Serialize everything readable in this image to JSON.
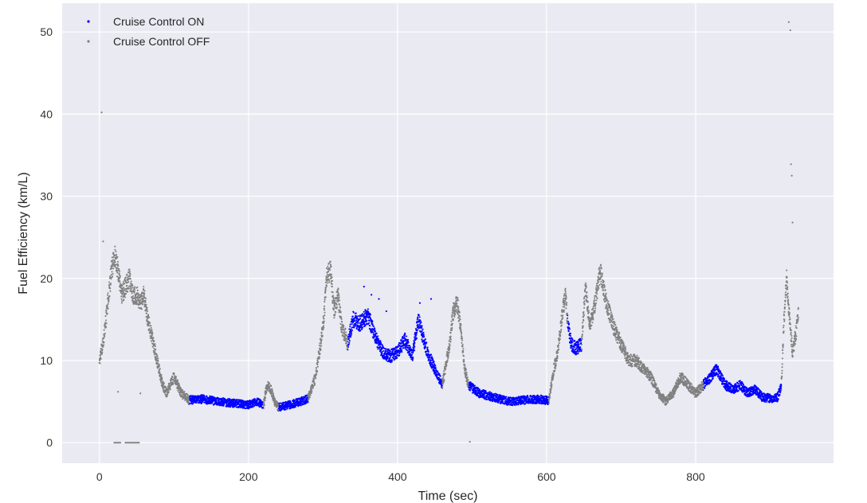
{
  "chart_data": {
    "type": "scatter",
    "title": "",
    "xlabel": "Time (sec)",
    "ylabel": "Fuel Efficiency (km/L)",
    "xlim": [
      -50,
      985
    ],
    "ylim": [
      -2.5,
      53.5
    ],
    "xticks": [
      0,
      200,
      400,
      600,
      800
    ],
    "yticks": [
      0,
      10,
      20,
      30,
      40,
      50
    ],
    "grid": true,
    "legend": "top-left",
    "colors": {
      "background": "#eaeaf2",
      "grid": "#ffffff"
    },
    "series": [
      {
        "name": "Cruise Control ON",
        "color": "#0000ff",
        "segments": [
          {
            "x": [
              120,
              140,
              160,
              180,
              200,
              212,
              220
            ],
            "y": [
              5.2,
              5.3,
              5.0,
              4.8,
              4.6,
              5.0,
              4.5
            ]
          },
          {
            "x": [
              240,
              255,
              270,
              280
            ],
            "y": [
              4.3,
              4.6,
              5.0,
              5.4
            ]
          },
          {
            "x": [
              333,
              340,
              350,
              360,
              370,
              380,
              390,
              400,
              410,
              420,
              428,
              440,
              450,
              460
            ],
            "y": [
              12,
              15,
              14.5,
              15.5,
              13,
              11,
              10.5,
              11,
              12.5,
              10.5,
              15,
              11,
              9,
              7
            ]
          },
          {
            "x": [
              495,
              510,
              530,
              550,
              570,
              590,
              603
            ],
            "y": [
              7,
              6,
              5.5,
              5.0,
              5.2,
              5.3,
              5.1
            ]
          },
          {
            "x": [
              628,
              633,
              640,
              647
            ],
            "y": [
              15,
              12,
              11.5,
              12
            ]
          },
          {
            "x": [
              810,
              820,
              828,
              840,
              850,
              860,
              870,
              880,
              890,
              900,
              910,
              915
            ],
            "y": [
              7,
              8,
              9,
              7,
              6.5,
              7,
              6,
              6.5,
              5.5,
              5.4,
              5.5,
              7
            ]
          }
        ],
        "isolated": [
          {
            "x": [
              355,
              365,
              375,
              385,
              430,
              445
            ],
            "y": [
              19,
              18,
              17.5,
              16,
              17,
              17.5
            ]
          }
        ]
      },
      {
        "name": "Cruise Control OFF",
        "color": "#808080",
        "segments": [
          {
            "x": [
              0,
              5,
              10,
              15,
              20,
              25,
              30,
              35,
              40,
              45,
              50,
              55,
              60,
              65,
              70,
              75,
              80,
              85,
              90,
              95,
              100,
              105,
              110,
              120
            ],
            "y": [
              10,
              12,
              16,
              20,
              23,
              21,
              18,
              19,
              20,
              18,
              18,
              17,
              18,
              15,
              13,
              11,
              9,
              7,
              6,
              7,
              8,
              7,
              6,
              5.2
            ]
          },
          {
            "x": [
              220,
              225,
              230,
              235,
              240
            ],
            "y": [
              4.5,
              7,
              6.5,
              5,
              4.3
            ]
          },
          {
            "x": [
              280,
              290,
              300,
              305,
              310,
              315,
              320,
              325,
              330,
              333
            ],
            "y": [
              5.4,
              8,
              14,
              20,
              21,
              16,
              18,
              14,
              13,
              12
            ]
          },
          {
            "x": [
              460,
              470,
              475,
              480,
              485,
              490,
              495
            ],
            "y": [
              7,
              12,
              16,
              17,
              14,
              9,
              7
            ]
          },
          {
            "x": [
              603,
              610,
              615,
              620,
              625,
              628
            ],
            "y": [
              5.1,
              9,
              11,
              15,
              18,
              15
            ]
          },
          {
            "x": [
              647,
              652,
              658,
              665,
              672,
              680,
              690,
              700,
              710,
              720,
              730,
              740,
              750,
              760,
              770,
              780,
              790,
              800,
              810
            ],
            "y": [
              12,
              19,
              14,
              17,
              21,
              17,
              14,
              12,
              10,
              10,
              9,
              8,
              6,
              5,
              6,
              8,
              7,
              6,
              7
            ]
          },
          {
            "x": [
              915,
              918,
              922,
              926,
              930,
              934,
              938
            ],
            "y": [
              7,
              14,
              20,
              15,
              11,
              13,
              16
            ]
          }
        ],
        "isolated": [
          {
            "x": [
              3,
              5,
              25,
              55,
              497,
              925,
              927,
              928,
              929,
              930
            ],
            "y": [
              40.2,
              24.5,
              6.2,
              6.0,
              0.1,
              51.2,
              50.2,
              33.9,
              32.5,
              26.8
            ]
          },
          {
            "x": [
              20,
              22,
              24,
              26,
              28,
              35,
              37,
              39,
              41,
              43,
              45,
              47,
              49,
              51,
              53
            ],
            "y": [
              0,
              0,
              0,
              0,
              0,
              0,
              0,
              0,
              0,
              0,
              0,
              0,
              0,
              0,
              0
            ]
          }
        ]
      }
    ]
  }
}
